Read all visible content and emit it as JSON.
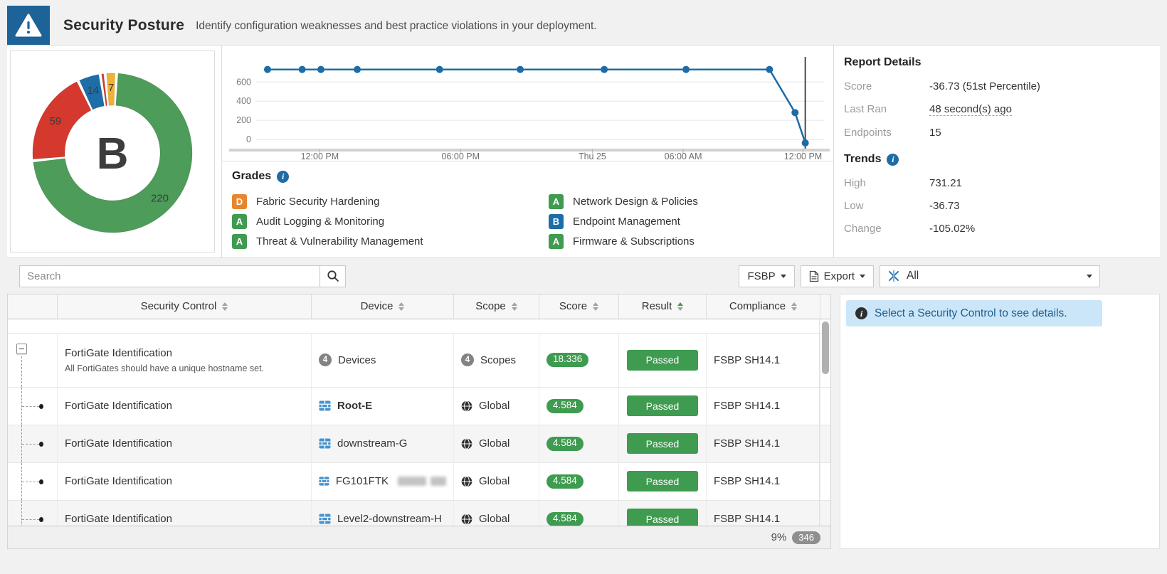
{
  "header": {
    "title": "Security Posture",
    "subtitle": "Identify configuration weaknesses and best practice violations in your deployment."
  },
  "chart_data": [
    {
      "type": "pie",
      "name": "security-grade-donut",
      "center_label": "B",
      "segments": [
        {
          "label": "220",
          "value": 220,
          "color": "#4d9c59"
        },
        {
          "label": "59",
          "value": 59,
          "color": "#d5382d"
        },
        {
          "label": "14",
          "value": 14,
          "color": "#1d6ea8"
        },
        {
          "label": "",
          "value": 3,
          "color": "#d5382d"
        },
        {
          "label": "7",
          "value": 7,
          "color": "#f0b233"
        }
      ]
    },
    {
      "type": "line",
      "name": "security-score-trend",
      "line_color": "#1d6ca5",
      "y_ticks": [
        0,
        200,
        400,
        600
      ],
      "ylim": [
        -60,
        790
      ],
      "x_ticks": [
        {
          "f": 0.112,
          "label": "12:00 PM"
        },
        {
          "f": 0.36,
          "label": "06:00 PM"
        },
        {
          "f": 0.592,
          "label": "Thu 25"
        },
        {
          "f": 0.752,
          "label": "06:00 AM"
        },
        {
          "f": 0.963,
          "label": "12:00 PM"
        }
      ],
      "points": [
        {
          "f": 0.02,
          "v": 731.21
        },
        {
          "f": 0.081,
          "v": 731.21
        },
        {
          "f": 0.114,
          "v": 731.21
        },
        {
          "f": 0.178,
          "v": 731.21
        },
        {
          "f": 0.323,
          "v": 731.21
        },
        {
          "f": 0.465,
          "v": 731.21
        },
        {
          "f": 0.613,
          "v": 731.21
        },
        {
          "f": 0.757,
          "v": 731.21
        },
        {
          "f": 0.904,
          "v": 731.21
        },
        {
          "f": 0.949,
          "v": 280
        },
        {
          "f": 0.967,
          "v": -36.73
        }
      ],
      "cursor_f": 0.967
    }
  ],
  "grades": {
    "title": "Grades",
    "items": [
      {
        "grade": "D",
        "color": "#e8862d",
        "label": "Fabric Security Hardening"
      },
      {
        "grade": "A",
        "color": "#3e9b4f",
        "label": "Audit Logging & Monitoring"
      },
      {
        "grade": "A",
        "color": "#3e9b4f",
        "label": "Threat & Vulnerability Management"
      },
      {
        "grade": "A",
        "color": "#3e9b4f",
        "label": "Network Design & Policies"
      },
      {
        "grade": "B",
        "color": "#1d6ea8",
        "label": "Endpoint Management"
      },
      {
        "grade": "A",
        "color": "#3e9b4f",
        "label": "Firmware & Subscriptions"
      }
    ]
  },
  "report": {
    "title": "Report Details",
    "rows": [
      [
        "Score",
        "-36.73 (51st Percentile)"
      ],
      [
        "Last Ran",
        "48 second(s) ago"
      ],
      [
        "Endpoints",
        "15"
      ]
    ],
    "trends_title": "Trends",
    "trend_rows": [
      [
        "High",
        "731.21"
      ],
      [
        "Low",
        "-36.73"
      ],
      [
        "Change",
        "-105.02%"
      ]
    ]
  },
  "toolbar": {
    "search_placeholder": "Search",
    "fsbp_label": "FSBP",
    "export_label": "Export",
    "filter_value": "All"
  },
  "table": {
    "columns": [
      "Security Control",
      "Device",
      "Scope",
      "Score",
      "Result",
      "Compliance"
    ],
    "sorted_column": "Result",
    "rows": [
      {
        "type": "parent",
        "control": "FortiGate Identification",
        "description": "All FortiGates should have a unique hostname set.",
        "device_count": "4",
        "device": "Devices",
        "scope_count": "4",
        "scope": "Scopes",
        "score": "18.336",
        "result": "Passed",
        "compliance": "FSBP SH14.1"
      },
      {
        "type": "child",
        "control": "FortiGate Identification",
        "device": "Root-E",
        "device_bold": true,
        "scope": "Global",
        "score": "4.584",
        "result": "Passed",
        "compliance": "FSBP SH14.1"
      },
      {
        "type": "child",
        "control": "FortiGate Identification",
        "device": "downstream-G",
        "scope": "Global",
        "score": "4.584",
        "result": "Passed",
        "compliance": "FSBP SH14.1"
      },
      {
        "type": "child",
        "control": "FortiGate Identification",
        "device": "FG101FTK",
        "device_redacted": true,
        "scope": "Global",
        "score": "4.584",
        "result": "Passed",
        "compliance": "FSBP SH14.1"
      },
      {
        "type": "child",
        "control": "FortiGate Identification",
        "device": "Level2-downstream-H",
        "scope": "Global",
        "score": "4.584",
        "result": "Passed",
        "compliance": "FSBP SH14.1"
      }
    ]
  },
  "detail": {
    "message": "Select a Security Control to see details."
  },
  "table_footer": {
    "percent": "9%",
    "count": "346"
  }
}
